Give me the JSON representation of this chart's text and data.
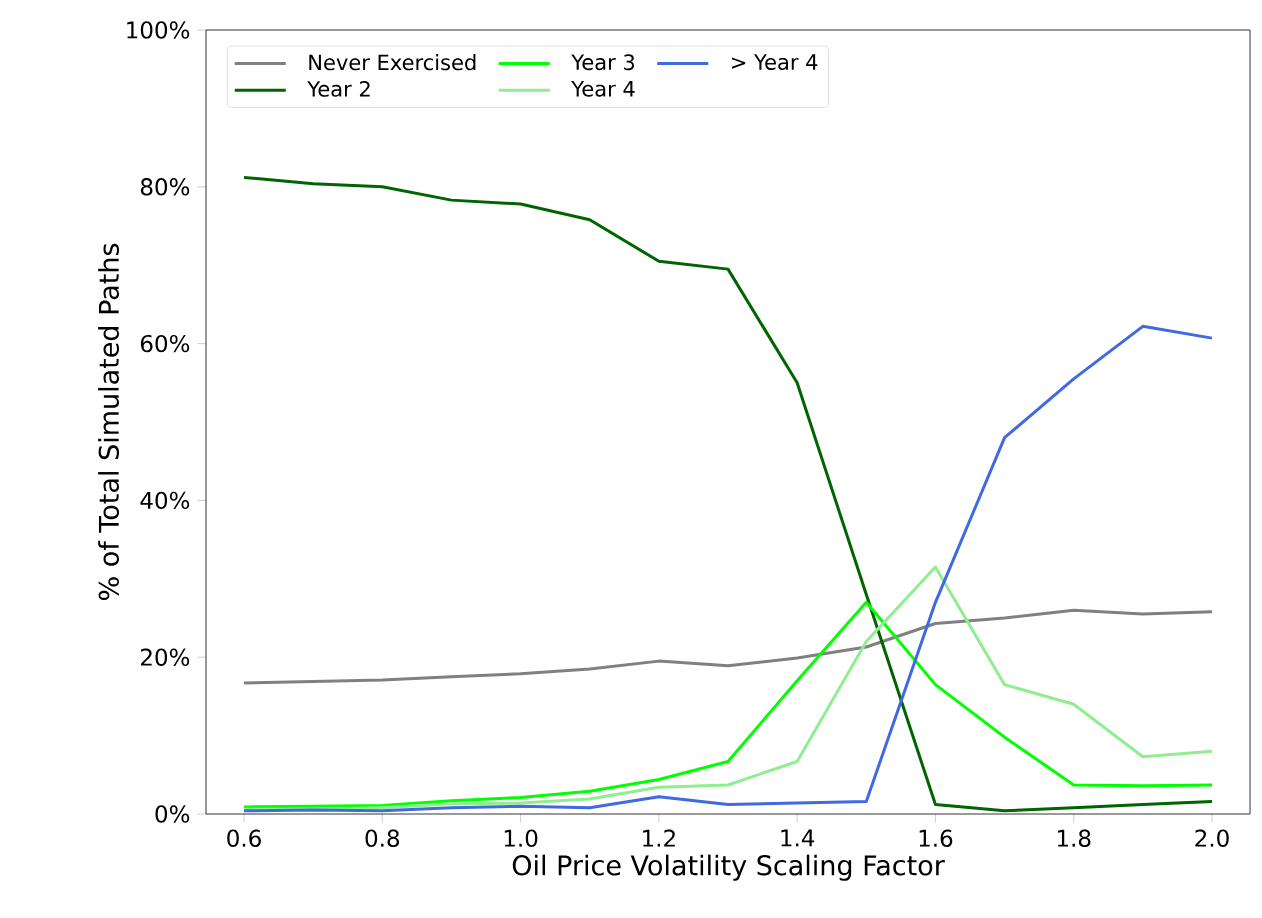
{
  "chart_data": {
    "type": "line",
    "xlabel": "Oil Price Volatility Scaling Factor",
    "ylabel": "% of Total Simulated Paths",
    "x": [
      0.6,
      0.7,
      0.8,
      0.9,
      1.0,
      1.1,
      1.2,
      1.3,
      1.4,
      1.5,
      1.6,
      1.7,
      1.8,
      1.9,
      2.0
    ],
    "xlim": [
      0.545,
      2.055
    ],
    "ylim": [
      0,
      100
    ],
    "xticks": [
      {
        "value": 0.6,
        "label": "0.6"
      },
      {
        "value": 0.8,
        "label": "0.8"
      },
      {
        "value": 1.0,
        "label": "1.0"
      },
      {
        "value": 1.2,
        "label": "1.2"
      },
      {
        "value": 1.4,
        "label": "1.4"
      },
      {
        "value": 1.6,
        "label": "1.6"
      },
      {
        "value": 1.8,
        "label": "1.8"
      },
      {
        "value": 2.0,
        "label": "2.0"
      }
    ],
    "yticks": [
      {
        "value": 0,
        "label": "0%"
      },
      {
        "value": 20,
        "label": "20%"
      },
      {
        "value": 40,
        "label": "40%"
      },
      {
        "value": 60,
        "label": "60%"
      },
      {
        "value": 80,
        "label": "80%"
      },
      {
        "value": 100,
        "label": "100%"
      }
    ],
    "legend": "top left",
    "grid": false,
    "series": [
      {
        "name": "Never Exercised",
        "color": "#808080",
        "values": [
          16.7,
          16.9,
          17.1,
          17.5,
          17.9,
          18.5,
          19.5,
          18.9,
          19.9,
          21.3,
          24.3,
          25.0,
          26.0,
          25.5,
          25.8
        ]
      },
      {
        "name": "Year 2",
        "color": "#006400",
        "values": [
          81.2,
          80.4,
          80.0,
          78.3,
          77.8,
          75.8,
          70.5,
          69.5,
          55.0,
          28.0,
          1.2,
          0.4,
          0.8,
          1.2,
          1.6
        ]
      },
      {
        "name": "Year 3",
        "color": "#00ff00",
        "values": [
          0.9,
          1.0,
          1.1,
          1.7,
          2.1,
          2.9,
          4.4,
          6.7,
          17.0,
          27.0,
          16.5,
          9.8,
          3.7,
          3.6,
          3.7
        ]
      },
      {
        "name": "Year 4",
        "color": "#90ee90",
        "values": [
          0.6,
          0.6,
          0.8,
          1.3,
          1.4,
          1.9,
          3.4,
          3.7,
          6.7,
          22.0,
          31.5,
          16.5,
          14.0,
          7.3,
          8.0
        ]
      },
      {
        "name": "> Year 4",
        "color": "#4169e1",
        "values": [
          0.4,
          0.5,
          0.4,
          0.8,
          1.0,
          0.8,
          2.2,
          1.2,
          1.4,
          1.6,
          27.0,
          48.0,
          55.5,
          62.2,
          60.7
        ]
      }
    ]
  }
}
